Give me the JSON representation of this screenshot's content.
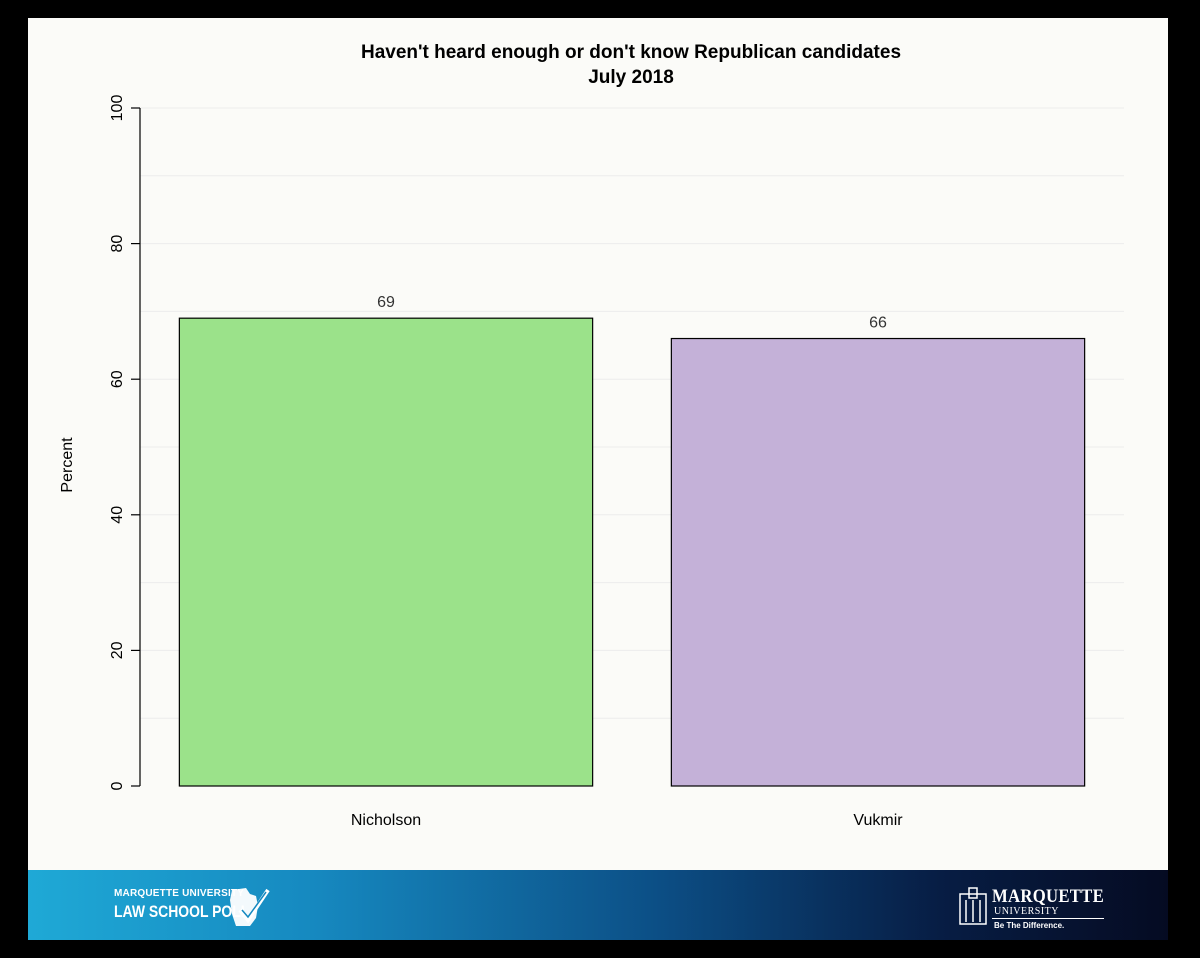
{
  "chart_data": {
    "type": "bar",
    "title": "Haven't heard enough or don't know Republican candidates",
    "subtitle": "July 2018",
    "ylabel": "Percent",
    "xlabel": "",
    "ylim": [
      0,
      100
    ],
    "yticks": [
      0,
      20,
      40,
      60,
      80,
      100
    ],
    "grid": true,
    "categories": [
      "Nicholson",
      "Vukmir"
    ],
    "values": [
      69,
      66
    ],
    "data_labels": [
      "69",
      "66"
    ],
    "bar_colors": [
      "#9be28a",
      "#c4b1d8"
    ]
  },
  "footer": {
    "left_logo": {
      "line1": "MARQUETTE UNIVERSITY",
      "line2": "LAW SCHOOL POLL",
      "icon": "wisconsin-checkmark-icon"
    },
    "right_logo": {
      "name": "MARQUETTE",
      "sub": "UNIVERSITY",
      "tagline": "Be The Difference.",
      "icon": "crest-icon"
    }
  }
}
